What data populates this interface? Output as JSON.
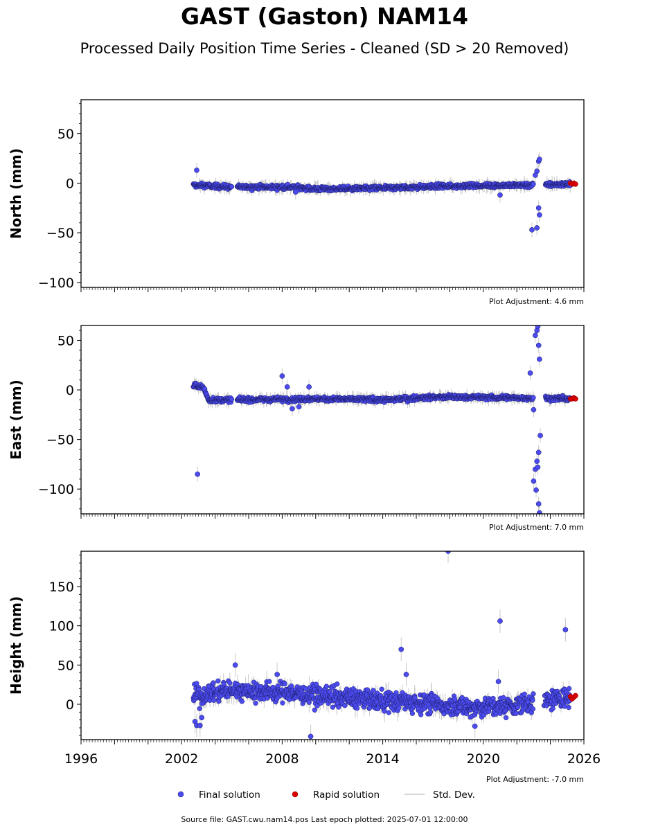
{
  "title": "GAST (Gaston) NAM14",
  "subtitle": "Processed Daily Position Time Series - Cleaned (SD > 20 Removed)",
  "footer": "Source file: GAST.cwu.nam14.pos  Last epoch plotted: 2025-07-01 12:00:00",
  "legend": {
    "final_label": "Final solution",
    "rapid_label": "Rapid solution",
    "std_label": "Std. Dev.",
    "placement": "bottom-center"
  },
  "colors": {
    "final": "#4b4bf0",
    "rapid": "#dd0000",
    "std": "#c8c8c8"
  },
  "chart_data": [
    {
      "type": "scatter",
      "ylabel": "North (mm)",
      "xlim": [
        1996,
        2026
      ],
      "ylim": [
        -105,
        84
      ],
      "yticks": [
        50,
        0,
        -50,
        -100
      ],
      "yticklabels": [
        "50",
        "0",
        "−50",
        "−100"
      ],
      "adjustment": "Plot Adjustment: 4.6 mm",
      "final_trend": [
        [
          2002.7,
          -2
        ],
        [
          2005.0,
          -4
        ],
        [
          2009.0,
          -4
        ],
        [
          2010.0,
          -6
        ],
        [
          2014.0,
          -5
        ],
        [
          2017.5,
          -3
        ],
        [
          2022.5,
          -2
        ],
        [
          2025.2,
          -1
        ]
      ],
      "final_outliers": [
        [
          2002.9,
          13
        ],
        [
          2008.8,
          -9
        ],
        [
          2021.0,
          -12
        ],
        [
          2022.9,
          -47
        ],
        [
          2023.2,
          -45
        ],
        [
          2023.3,
          -25
        ],
        [
          2023.35,
          -32
        ],
        [
          2023.2,
          12
        ],
        [
          2023.3,
          22
        ],
        [
          2023.35,
          24
        ],
        [
          2023.1,
          8
        ]
      ],
      "rapid": [
        [
          2025.2,
          0
        ],
        [
          2025.3,
          -1
        ],
        [
          2025.4,
          0
        ],
        [
          2025.5,
          -1
        ]
      ]
    },
    {
      "type": "scatter",
      "ylabel": "East (mm)",
      "xlim": [
        1996,
        2026
      ],
      "ylim": [
        -125,
        65
      ],
      "yticks": [
        50,
        0,
        -50,
        -100
      ],
      "yticklabels": [
        "50",
        "0",
        "−50",
        "−100"
      ],
      "adjustment": "Plot Adjustment: 7.0 mm",
      "final_trend": [
        [
          2002.7,
          4
        ],
        [
          2003.3,
          3
        ],
        [
          2003.6,
          -10
        ],
        [
          2005.0,
          -10
        ],
        [
          2010.0,
          -9
        ],
        [
          2014.0,
          -10
        ],
        [
          2017.5,
          -7
        ],
        [
          2022.5,
          -8
        ],
        [
          2025.2,
          -9
        ]
      ],
      "final_outliers": [
        [
          2002.95,
          -85
        ],
        [
          2008.0,
          14
        ],
        [
          2008.6,
          -19
        ],
        [
          2009.0,
          -17
        ],
        [
          2009.6,
          3
        ],
        [
          2008.3,
          3
        ],
        [
          2023.0,
          -92
        ],
        [
          2023.1,
          -80
        ],
        [
          2023.2,
          -72
        ],
        [
          2023.25,
          -78
        ],
        [
          2023.3,
          -63
        ],
        [
          2023.15,
          -101
        ],
        [
          2023.3,
          -115
        ],
        [
          2023.35,
          -124
        ],
        [
          2023.4,
          -46
        ],
        [
          2023.1,
          55
        ],
        [
          2023.2,
          60
        ],
        [
          2023.25,
          64
        ],
        [
          2023.3,
          45
        ],
        [
          2023.35,
          31
        ],
        [
          2022.8,
          17
        ],
        [
          2023.0,
          -20
        ]
      ],
      "rapid": [
        [
          2025.2,
          -9
        ],
        [
          2025.3,
          -9
        ],
        [
          2025.4,
          -8
        ],
        [
          2025.5,
          -9
        ]
      ]
    },
    {
      "type": "scatter",
      "ylabel": "Height (mm)",
      "xlim": [
        1996,
        2026
      ],
      "ylim": [
        -45,
        195
      ],
      "yticks": [
        150,
        100,
        50,
        0
      ],
      "yticklabels": [
        "150",
        "100",
        "50",
        "0"
      ],
      "xticks": [
        1996,
        2002,
        2008,
        2014,
        2020,
        2026
      ],
      "xticklabels": [
        "1996",
        "2002",
        "2008",
        "2014",
        "2020",
        "2026"
      ],
      "adjustment": "Plot Adjustment: -7.0 mm",
      "final_trend": [
        [
          2002.7,
          10
        ],
        [
          2005.0,
          18
        ],
        [
          2008.0,
          15
        ],
        [
          2012.0,
          8
        ],
        [
          2016.0,
          2
        ],
        [
          2020.0,
          -4
        ],
        [
          2022.5,
          0
        ],
        [
          2025.2,
          10
        ]
      ],
      "final_outliers": [
        [
          2002.8,
          -22
        ],
        [
          2002.9,
          -27
        ],
        [
          2003.1,
          -27
        ],
        [
          2003.2,
          -17
        ],
        [
          2005.2,
          50
        ],
        [
          2007.7,
          38
        ],
        [
          2009.7,
          -41
        ],
        [
          2015.1,
          70
        ],
        [
          2015.4,
          38
        ],
        [
          2017.9,
          195
        ],
        [
          2020.9,
          29
        ],
        [
          2021.0,
          106
        ],
        [
          2024.9,
          95
        ],
        [
          2019.5,
          -28
        ]
      ],
      "rapid": [
        [
          2025.2,
          10
        ],
        [
          2025.3,
          7
        ],
        [
          2025.4,
          9
        ],
        [
          2025.5,
          11
        ]
      ]
    }
  ]
}
